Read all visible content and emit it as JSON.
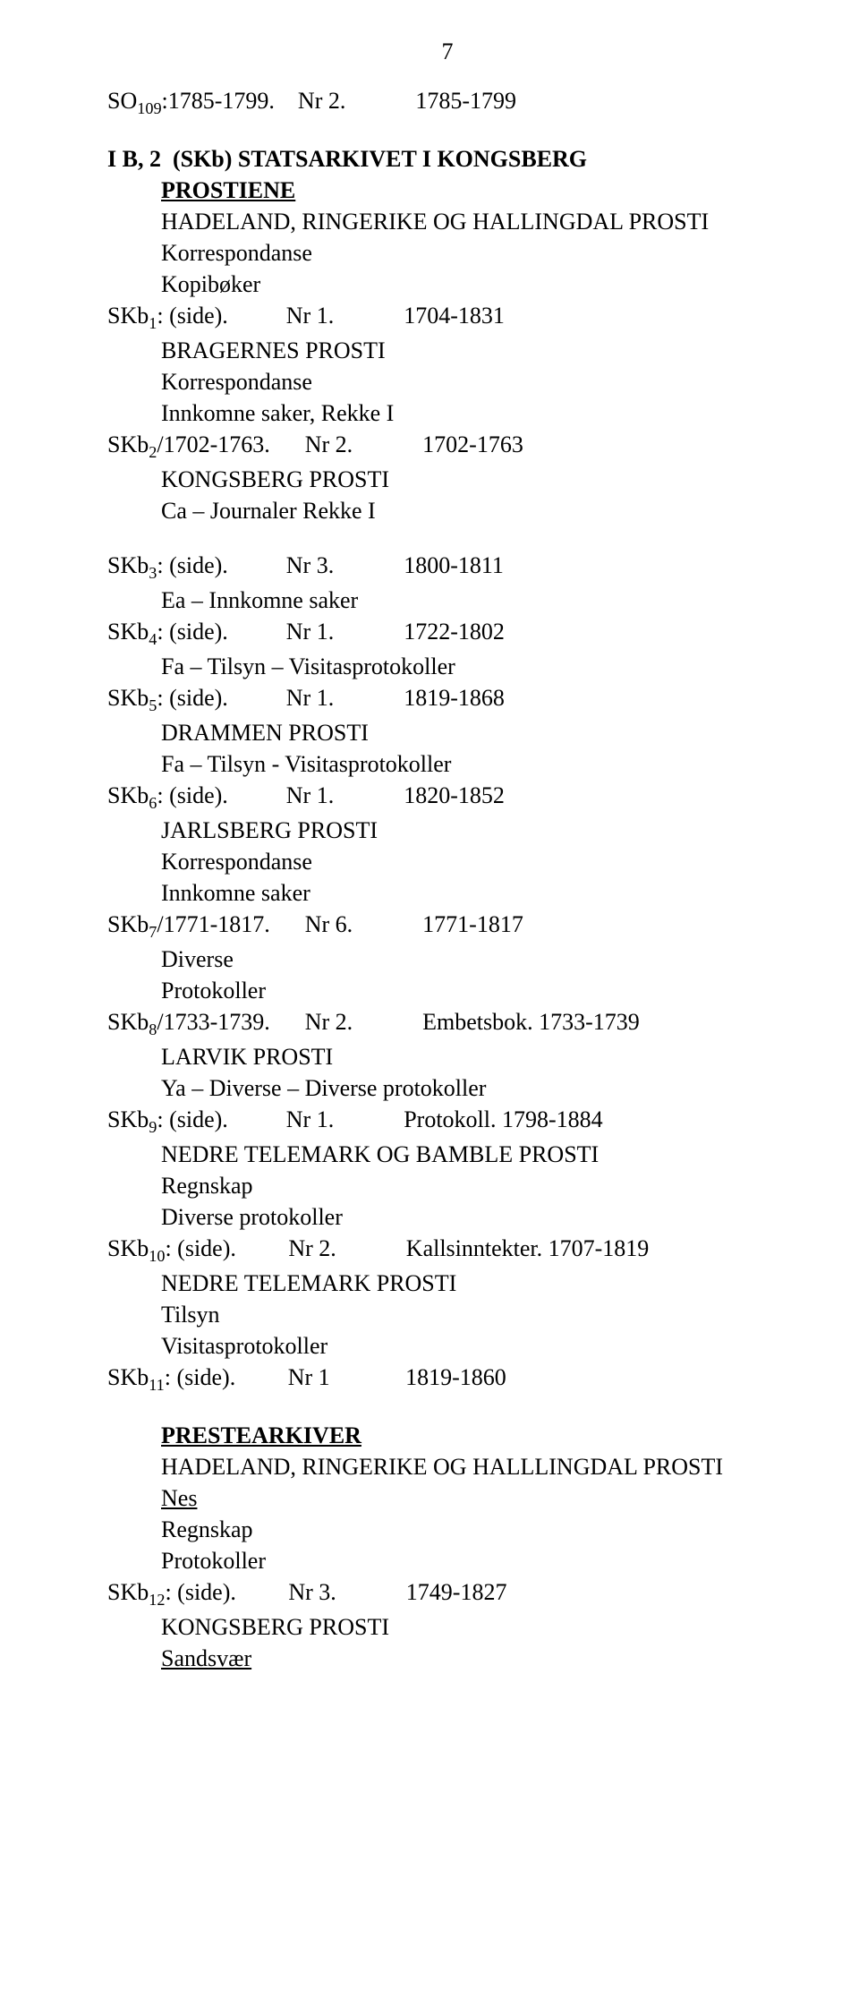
{
  "page_number": "7",
  "lines": [
    {
      "cls": "",
      "t": "SO₁₀₉:1785-1799.    Nr 2.            1785-1799"
    },
    {
      "cls": "spacer",
      "t": ""
    },
    {
      "cls": "bold",
      "t": "I B, 2  (SKb) STATSARKIVET I KONGSBERG"
    },
    {
      "cls": "indent1 bold underline",
      "t": "PROSTIENE"
    },
    {
      "cls": "indent1",
      "t": "HADELAND, RINGERIKE OG HALLINGDAL PROSTI"
    },
    {
      "cls": "indent1",
      "t": "Korrespondanse"
    },
    {
      "cls": "indent1",
      "t": "Kopibøker"
    },
    {
      "cls": "",
      "t": "SKb₁: (side).          Nr 1.            1704-1831"
    },
    {
      "cls": "indent1",
      "t": "BRAGERNES PROSTI"
    },
    {
      "cls": "indent1",
      "t": "Korrespondanse"
    },
    {
      "cls": "indent1",
      "t": "Innkomne saker, Rekke I"
    },
    {
      "cls": "",
      "t": "SKb₂/1702-1763.      Nr 2.            1702-1763"
    },
    {
      "cls": "indent1",
      "t": "KONGSBERG PROSTI"
    },
    {
      "cls": "indent1",
      "t": "Ca – Journaler Rekke I"
    },
    {
      "cls": "spacer",
      "t": ""
    },
    {
      "cls": "",
      "t": "SKb₃: (side).          Nr 3.            1800-1811"
    },
    {
      "cls": "indent1",
      "t": "Ea – Innkomne saker"
    },
    {
      "cls": "",
      "t": "SKb₄: (side).          Nr 1.            1722-1802"
    },
    {
      "cls": "indent1",
      "t": "Fa – Tilsyn – Visitasprotokoller"
    },
    {
      "cls": "",
      "t": "SKb₅: (side).          Nr 1.            1819-1868"
    },
    {
      "cls": "indent1",
      "t": "DRAMMEN PROSTI"
    },
    {
      "cls": "indent1",
      "t": "Fa – Tilsyn - Visitasprotokoller"
    },
    {
      "cls": "",
      "t": "SKb₆: (side).          Nr 1.            1820-1852"
    },
    {
      "cls": "indent1",
      "t": "JARLSBERG PROSTI"
    },
    {
      "cls": "indent1",
      "t": "Korrespondanse"
    },
    {
      "cls": "indent1",
      "t": "Innkomne saker"
    },
    {
      "cls": "",
      "t": "SKb₇/1771-1817.      Nr 6.            1771-1817"
    },
    {
      "cls": "indent1",
      "t": "Diverse"
    },
    {
      "cls": "indent1",
      "t": "Protokoller"
    },
    {
      "cls": "",
      "t": "SKb₈/1733-1739.      Nr 2.            Embetsbok. 1733-1739"
    },
    {
      "cls": "indent1",
      "t": "LARVIK PROSTI"
    },
    {
      "cls": "indent1",
      "t": "Ya – Diverse – Diverse protokoller"
    },
    {
      "cls": "",
      "t": "SKb₉: (side).          Nr 1.            Protokoll. 1798-1884"
    },
    {
      "cls": "indent1",
      "t": "NEDRE TELEMARK OG BAMBLE PROSTI"
    },
    {
      "cls": "indent1",
      "t": "Regnskap"
    },
    {
      "cls": "indent1",
      "t": "Diverse protokoller"
    },
    {
      "cls": "",
      "t": "SKb₁₀: (side).         Nr 2.            Kallsinntekter. 1707-1819"
    },
    {
      "cls": "indent1",
      "t": "NEDRE TELEMARK PROSTI"
    },
    {
      "cls": "indent1",
      "t": "Tilsyn"
    },
    {
      "cls": "indent1",
      "t": "Visitasprotokoller"
    },
    {
      "cls": "",
      "t": "SKb₁₁: (side).         Nr 1             1819-1860"
    },
    {
      "cls": "spacer",
      "t": ""
    },
    {
      "cls": "indent1 bold underline",
      "t": "PRESTEARKIVER"
    },
    {
      "cls": "indent1",
      "t": "HADELAND, RINGERIKE OG HALLLINGDAL PROSTI"
    },
    {
      "cls": "indent1 underline",
      "t": "Nes"
    },
    {
      "cls": "indent1",
      "t": "Regnskap"
    },
    {
      "cls": "indent1",
      "t": "Protokoller"
    },
    {
      "cls": "",
      "t": "SKb₁₂: (side).         Nr 3.            1749-1827"
    },
    {
      "cls": "indent1",
      "t": "KONGSBERG PROSTI"
    },
    {
      "cls": "indent1 underline",
      "t": "Sandsvær"
    }
  ]
}
